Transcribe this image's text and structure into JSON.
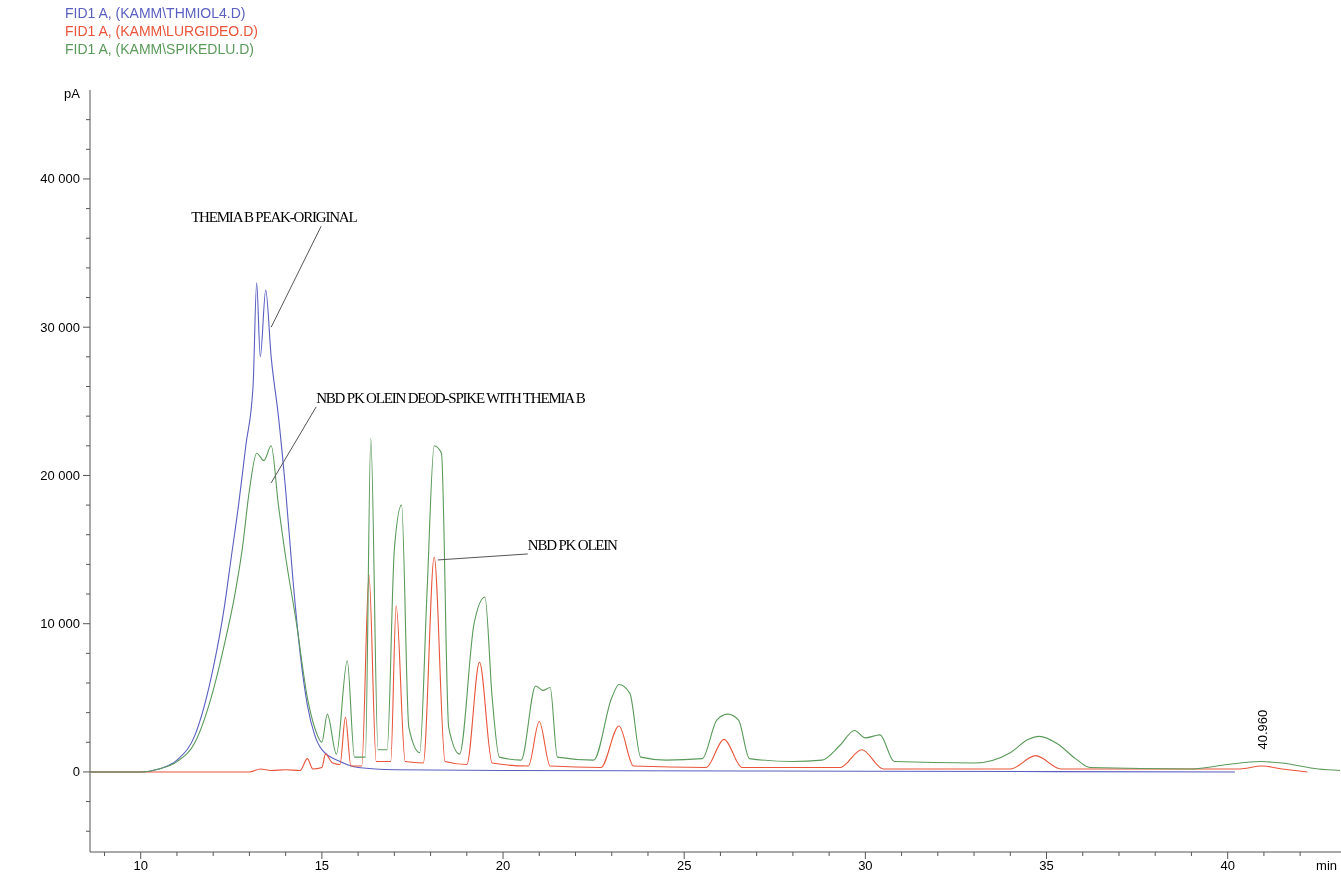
{
  "chart_data": {
    "type": "line",
    "xlabel": "min",
    "ylabel": "pA",
    "legend": "top left",
    "grid": false,
    "line_style": "solid",
    "xlim": [
      8.6,
      43.1
    ],
    "ylim": [
      -5400,
      46000
    ],
    "xticks": [
      {
        "value": 9,
        "label": null
      },
      10,
      {
        "value": 11,
        "label": null
      },
      {
        "value": 12,
        "label": null
      },
      {
        "value": 13,
        "label": null
      },
      {
        "value": 14,
        "label": null
      },
      15,
      {
        "value": 16,
        "label": null
      },
      {
        "value": 17,
        "label": null
      },
      {
        "value": 18,
        "label": null
      },
      {
        "value": 19,
        "label": null
      },
      20,
      {
        "value": 21,
        "label": null
      },
      {
        "value": 22,
        "label": null
      },
      {
        "value": 23,
        "label": null
      },
      {
        "value": 24,
        "label": null
      },
      25,
      {
        "value": 26,
        "label": null
      },
      {
        "value": 27,
        "label": null
      },
      {
        "value": 28,
        "label": null
      },
      {
        "value": 29,
        "label": null
      },
      30,
      {
        "value": 31,
        "label": null
      },
      {
        "value": 32,
        "label": null
      },
      {
        "value": 33,
        "label": null
      },
      {
        "value": 34,
        "label": null
      },
      35,
      {
        "value": 36,
        "label": null
      },
      {
        "value": 37,
        "label": null
      },
      {
        "value": 38,
        "label": null
      },
      {
        "value": 39,
        "label": null
      },
      40,
      {
        "value": 41,
        "label": null
      },
      {
        "value": 42,
        "label": null
      }
    ],
    "yticks": [
      {
        "value": -4000,
        "label": null
      },
      {
        "value": -2000,
        "label": null
      },
      0,
      {
        "value": 2000,
        "label": null
      },
      {
        "value": 4000,
        "label": null
      },
      {
        "value": 6000,
        "label": null
      },
      {
        "value": 8000,
        "label": null
      },
      {
        "value": 10000,
        "label": "10 000"
      },
      {
        "value": 12000,
        "label": null
      },
      {
        "value": 14000,
        "label": null
      },
      {
        "value": 16000,
        "label": null
      },
      {
        "value": 18000,
        "label": null
      },
      {
        "value": 20000,
        "label": "20 000"
      },
      {
        "value": 22000,
        "label": null
      },
      {
        "value": 24000,
        "label": null
      },
      {
        "value": 26000,
        "label": null
      },
      {
        "value": 28000,
        "label": null
      },
      {
        "value": 30000,
        "label": "30 000"
      },
      {
        "value": 32000,
        "label": null
      },
      {
        "value": 34000,
        "label": null
      },
      {
        "value": 36000,
        "label": null
      },
      {
        "value": 38000,
        "label": null
      },
      {
        "value": 40000,
        "label": "40 000"
      },
      {
        "value": 42000,
        "label": null
      },
      {
        "value": 44000,
        "label": null
      }
    ],
    "series": [
      {
        "name": "FID1 A,  (KAMM\\THMIOL4.D)",
        "color": "#5a5fc0",
        "x": [
          8.6,
          10,
          10.5,
          11,
          11.5,
          12,
          12.3,
          12.5,
          12.7,
          12.9,
          13.1,
          13.2,
          13.3,
          13.45,
          13.6,
          13.8,
          14.0,
          14.2,
          14.4,
          14.6,
          14.8,
          15.0,
          15.5,
          16,
          17,
          20,
          30,
          40.2
        ],
        "values": [
          0,
          0,
          200,
          800,
          2500,
          7000,
          11000,
          14500,
          18000,
          22000,
          26000,
          33000,
          28000,
          32500,
          28000,
          24000,
          19000,
          13000,
          8000,
          4500,
          2500,
          1500,
          700,
          300,
          150,
          100,
          50,
          0
        ]
      },
      {
        "name": "FID1 A,  (KAMM\\LURGIDEO.D)",
        "color": "#e8553a",
        "x": [
          8.6,
          13.0,
          13.3,
          13.6,
          14.0,
          14.4,
          14.6,
          14.75,
          15.0,
          15.1,
          15.3,
          15.5,
          15.65,
          15.8,
          16.1,
          16.3,
          16.5,
          16.9,
          17.05,
          17.3,
          17.8,
          18.1,
          18.4,
          19.0,
          19.35,
          19.7,
          20.7,
          21.0,
          21.3,
          22.7,
          23.2,
          23.6,
          25.6,
          26.1,
          26.6,
          29.3,
          29.9,
          30.5,
          34.0,
          34.7,
          35.4,
          40.3,
          40.96,
          41.5,
          42.2
        ],
        "values": [
          0,
          0,
          200,
          100,
          150,
          100,
          900,
          200,
          300,
          1200,
          600,
          500,
          3700,
          400,
          400,
          13300,
          700,
          700,
          11200,
          700,
          600,
          14500,
          700,
          500,
          7400,
          600,
          400,
          3400,
          400,
          300,
          3100,
          400,
          300,
          2200,
          300,
          300,
          1500,
          200,
          200,
          1100,
          200,
          200,
          400,
          200,
          0
        ]
      },
      {
        "name": "FID1 A,  (KAMM\\SPIKEDLU.D)",
        "color": "#5a9a5a",
        "x": [
          8.6,
          10,
          10.5,
          11,
          11.5,
          12,
          12.3,
          12.6,
          12.8,
          13,
          13.2,
          13.4,
          13.6,
          13.8,
          14,
          14.3,
          14.6,
          14.8,
          15.0,
          15.15,
          15.4,
          15.7,
          15.9,
          16.2,
          16.35,
          16.55,
          16.8,
          17.0,
          17.2,
          17.4,
          17.7,
          17.9,
          18.1,
          18.3,
          18.5,
          18.8,
          19.2,
          19.5,
          19.7,
          19.9,
          20.5,
          20.9,
          21.1,
          21.3,
          21.5,
          22.5,
          23.0,
          23.2,
          23.5,
          23.8,
          24.5,
          25.5,
          25.9,
          26.2,
          26.5,
          26.8,
          28.0,
          28.8,
          29.3,
          29.7,
          30.0,
          30.4,
          30.8,
          33.0,
          34.0,
          34.5,
          34.8,
          35.3,
          35.8,
          36.2,
          39.0,
          40.0,
          40.9,
          41.5,
          42.5,
          43.1
        ],
        "values": [
          0,
          0,
          200,
          700,
          2000,
          5500,
          8500,
          12000,
          15000,
          19000,
          21500,
          21000,
          22000,
          18000,
          14500,
          10000,
          5000,
          3000,
          2000,
          3900,
          1200,
          7500,
          1000,
          1000,
          22500,
          1500,
          1500,
          15000,
          18000,
          3000,
          1300,
          12000,
          22000,
          21500,
          3000,
          1200,
          10000,
          11800,
          5000,
          1000,
          800,
          5800,
          5500,
          5700,
          1000,
          800,
          5000,
          5900,
          5300,
          1000,
          800,
          900,
          3500,
          3900,
          3500,
          900,
          700,
          800,
          1800,
          2800,
          2300,
          2500,
          700,
          600,
          1300,
          2200,
          2400,
          1900,
          900,
          300,
          200,
          500,
          700,
          600,
          200,
          100
        ]
      }
    ],
    "annotations": [
      {
        "text": "THEMIA B PEAK-ORIGINAL",
        "x": 13.6,
        "y": 30000
      },
      {
        "text": "NBD PK OLEIN DEOD-SPIKE WITH THEMIA B",
        "x": 13.6,
        "y": 19500
      },
      {
        "text": "NBD PK OLEIN",
        "x": 18.2,
        "y": 14300
      },
      {
        "text": "40.960",
        "x": 40.96,
        "y": 700
      }
    ]
  }
}
